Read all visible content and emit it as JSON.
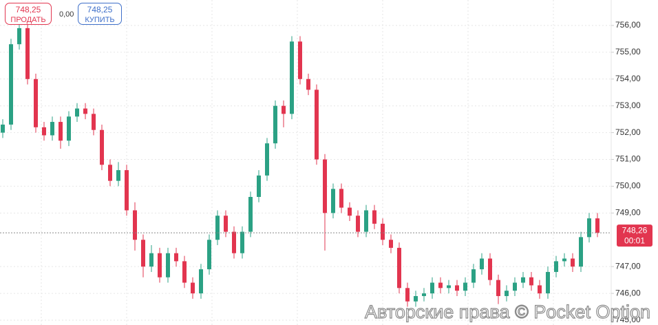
{
  "chart_data": {
    "type": "candlestick",
    "open": [
      752.0,
      752.3,
      755.3,
      755.9,
      754.0,
      752.2,
      751.9,
      752.4,
      751.7,
      752.6,
      752.9,
      752.7,
      752.1,
      750.8,
      750.2,
      750.6,
      749.1,
      748.0,
      747.0,
      747.5,
      746.6,
      747.5,
      747.2,
      746.4,
      746.0,
      746.9,
      748.0,
      748.9,
      748.3,
      747.5,
      748.3,
      749.6,
      750.4,
      751.6,
      753.0,
      752.7,
      755.4,
      754.0,
      753.6,
      751.0,
      749.0,
      749.9,
      749.2,
      748.9,
      748.3,
      749.1,
      748.6,
      748.0,
      747.7,
      746.2,
      745.7,
      745.9,
      746.0,
      746.4,
      746.2,
      746.3,
      746.1,
      746.4,
      746.9,
      747.3,
      746.5,
      745.9,
      746.1,
      746.4,
      746.6,
      746.3,
      746.0,
      746.8,
      747.2,
      747.3,
      747.0,
      748.1,
      748.8
    ],
    "high": [
      752.5,
      755.5,
      756.1,
      756.1,
      754.2,
      752.4,
      752.6,
      752.6,
      752.8,
      753.1,
      753.1,
      752.9,
      752.3,
      751.0,
      750.9,
      750.8,
      749.4,
      748.2,
      747.8,
      747.7,
      747.7,
      747.7,
      747.4,
      746.6,
      747.1,
      748.2,
      749.1,
      749.1,
      748.5,
      748.5,
      749.8,
      750.6,
      751.8,
      753.2,
      753.2,
      755.6,
      755.6,
      754.2,
      753.8,
      751.2,
      750.1,
      750.1,
      749.4,
      749.1,
      749.3,
      749.3,
      748.8,
      748.2,
      747.9,
      746.4,
      746.1,
      746.2,
      746.6,
      746.6,
      746.5,
      746.5,
      746.6,
      747.1,
      747.5,
      747.5,
      746.7,
      746.3,
      746.6,
      746.8,
      746.8,
      746.5,
      747.0,
      747.4,
      747.5,
      747.5,
      748.3,
      749.0,
      749.0
    ],
    "low": [
      751.8,
      752.1,
      755.1,
      753.8,
      752.0,
      751.7,
      751.7,
      751.4,
      751.5,
      752.4,
      752.5,
      751.9,
      750.6,
      750.0,
      750.0,
      748.9,
      747.6,
      746.6,
      746.8,
      746.4,
      746.4,
      747.0,
      746.2,
      745.8,
      745.8,
      746.7,
      747.8,
      748.1,
      747.3,
      747.3,
      748.1,
      749.4,
      750.2,
      751.4,
      752.2,
      752.5,
      753.8,
      753.4,
      750.8,
      747.6,
      748.8,
      749.0,
      748.7,
      748.1,
      748.1,
      748.4,
      747.8,
      747.5,
      746.0,
      745.5,
      745.5,
      745.7,
      745.8,
      746.0,
      746.0,
      745.9,
      745.9,
      746.2,
      746.7,
      746.3,
      745.6,
      745.7,
      745.9,
      746.2,
      746.1,
      745.8,
      745.8,
      746.6,
      747.0,
      746.8,
      746.8,
      747.9,
      748.1
    ],
    "close": [
      752.3,
      755.3,
      755.9,
      754.0,
      752.2,
      751.9,
      752.4,
      751.7,
      752.6,
      752.9,
      752.7,
      752.1,
      750.8,
      750.2,
      750.6,
      749.1,
      748.0,
      747.0,
      747.5,
      746.6,
      747.5,
      747.2,
      746.4,
      746.0,
      746.9,
      748.0,
      748.9,
      748.3,
      747.5,
      748.3,
      749.6,
      750.4,
      751.6,
      753.0,
      752.7,
      755.4,
      754.0,
      753.6,
      751.0,
      749.0,
      749.9,
      749.2,
      748.9,
      748.3,
      749.1,
      748.6,
      748.0,
      747.7,
      746.2,
      745.7,
      745.9,
      746.0,
      746.4,
      746.2,
      746.3,
      746.1,
      746.4,
      746.9,
      747.3,
      746.5,
      745.9,
      746.1,
      746.4,
      746.6,
      746.3,
      746.0,
      746.8,
      747.2,
      747.3,
      747.0,
      748.1,
      748.8,
      748.26
    ],
    "up_color": "#2ba184",
    "down_color": "#e2354f",
    "ylim": [
      744.82,
      756.95
    ],
    "yticks": [
      {
        "value": 745,
        "label": "745,00"
      },
      {
        "value": 746,
        "label": "746,00"
      },
      {
        "value": 747,
        "label": "747,00"
      },
      {
        "value": 749,
        "label": "749,00"
      },
      {
        "value": 750,
        "label": "750,00"
      },
      {
        "value": 751,
        "label": "751,00"
      },
      {
        "value": 752,
        "label": "752,00"
      },
      {
        "value": 753,
        "label": "753,00"
      },
      {
        "value": 754,
        "label": "754,00"
      },
      {
        "value": 755,
        "label": "755,00"
      },
      {
        "value": 756,
        "label": "756,00"
      }
    ],
    "grid": true,
    "current_price": {
      "value": 748.26,
      "label": "748,26",
      "timer": "00:01"
    }
  },
  "trade_panel": {
    "sell": {
      "price": "748,25",
      "label": "ПРОДАТЬ"
    },
    "spread": "0,00",
    "buy": {
      "price": "748,25",
      "label": "КУПИТЬ"
    }
  },
  "watermark": "Авторские права © Pocket Option"
}
